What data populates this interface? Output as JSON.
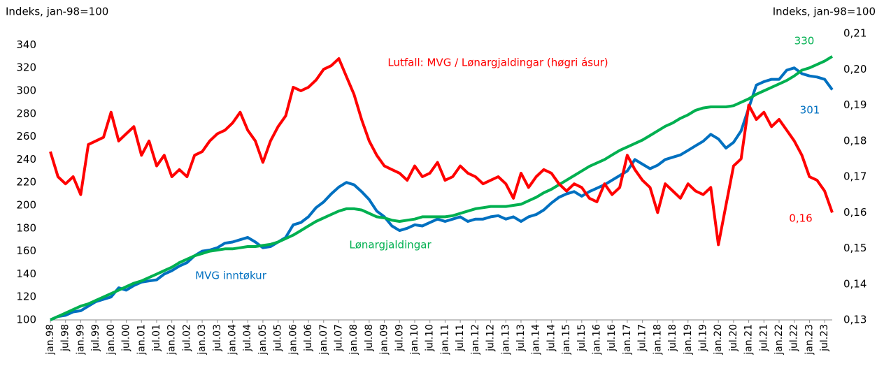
{
  "chart_data": {
    "type": "line",
    "y_label": "Indeks, jan-98=100",
    "y2_label": "Indeks, jan-98=100",
    "categories": [
      "jan.98",
      null,
      "jul.98",
      null,
      "jan.99",
      null,
      "jul.99",
      null,
      "jan.00",
      null,
      "jul.00",
      null,
      "jan.01",
      null,
      "jul.01",
      null,
      "jan.02",
      null,
      "jul.02",
      null,
      "jan.03",
      null,
      "jul.03",
      null,
      "jan.04",
      null,
      "jul.04",
      null,
      "jan.05",
      null,
      "jul.05",
      null,
      "jan.06",
      null,
      "jul.06",
      null,
      "jan.07",
      null,
      "jul.07",
      null,
      "jan.08",
      null,
      "jul.08",
      null,
      "jan.09",
      null,
      "jul.09",
      null,
      "jan.10",
      null,
      "jul.10",
      null,
      "jan.11",
      null,
      "jul.11",
      null,
      "jan.12",
      null,
      "jul.12",
      null,
      "jan.13",
      null,
      "jul.13",
      null,
      "jan.14",
      null,
      "jul.14",
      null,
      "jan.15",
      null,
      "jul.15",
      null,
      "jan.16",
      null,
      "jul.16",
      null,
      "jan.17",
      null,
      "jul.17",
      null,
      "jan.18",
      null,
      "jul.18",
      null,
      "jan.19",
      null,
      "jul.19",
      null,
      "jan.20",
      null,
      "jul.20",
      null,
      "jan.21",
      null,
      "jul.21",
      null,
      "jan.22",
      null,
      "jul.22",
      null,
      "jan.23",
      null,
      "jul.23",
      null
    ],
    "series": [
      {
        "name": "MVG inntøkur",
        "color": "#0070c0",
        "values": [
          100,
          103,
          104,
          107,
          108,
          112,
          116,
          118,
          120,
          128,
          126,
          130,
          133,
          134,
          135,
          140,
          143,
          147,
          150,
          156,
          160,
          161,
          163,
          167,
          168,
          170,
          172,
          168,
          163,
          164,
          168,
          172,
          183,
          185,
          190,
          198,
          203,
          210,
          216,
          220,
          218,
          212,
          205,
          195,
          190,
          182,
          178,
          180,
          183,
          182,
          185,
          188,
          186,
          188,
          190,
          186,
          188,
          188,
          190,
          191,
          188,
          190,
          186,
          190,
          192,
          196,
          202,
          207,
          210,
          212,
          208,
          212,
          215,
          218,
          222,
          226,
          230,
          240,
          236,
          232,
          235,
          240,
          242,
          244,
          248,
          252,
          256,
          262,
          258,
          250,
          255,
          265,
          285,
          305,
          308,
          310,
          310,
          318,
          320,
          315,
          313,
          312,
          310,
          301
        ]
      },
      {
        "name": "Lønargjaldingar",
        "color": "#00b050",
        "values": [
          100,
          103,
          106,
          109,
          112,
          114,
          117,
          120,
          123,
          126,
          129,
          132,
          134,
          137,
          140,
          143,
          146,
          150,
          153,
          156,
          158,
          160,
          161,
          162,
          162,
          163,
          164,
          164,
          165,
          166,
          168,
          171,
          174,
          178,
          182,
          186,
          189,
          192,
          195,
          197,
          197,
          196,
          193,
          190,
          189,
          187,
          186,
          187,
          188,
          190,
          190,
          190,
          190,
          191,
          193,
          195,
          197,
          198,
          199,
          199,
          199,
          200,
          201,
          204,
          207,
          211,
          214,
          218,
          222,
          226,
          230,
          234,
          237,
          240,
          244,
          248,
          251,
          254,
          257,
          261,
          265,
          269,
          272,
          276,
          279,
          283,
          285,
          286,
          286,
          286,
          287,
          290,
          293,
          297,
          300,
          303,
          306,
          309,
          313,
          318,
          320,
          323,
          326,
          330
        ]
      },
      {
        "name": "Lutfall: MVG / Lønargjaldingar (høgri ásur)",
        "color": "#ff0000",
        "axis": "y2",
        "values": [
          0.177,
          0.17,
          0.168,
          0.17,
          0.165,
          0.179,
          0.18,
          0.181,
          0.188,
          0.18,
          0.182,
          0.184,
          0.176,
          0.18,
          0.173,
          0.176,
          0.17,
          0.172,
          0.17,
          0.176,
          0.177,
          0.18,
          0.182,
          0.183,
          0.185,
          0.188,
          0.183,
          0.18,
          0.174,
          0.18,
          0.184,
          0.187,
          0.195,
          0.194,
          0.195,
          0.197,
          0.2,
          0.201,
          0.203,
          0.198,
          0.193,
          0.186,
          0.18,
          0.176,
          0.173,
          0.172,
          0.171,
          0.169,
          0.173,
          0.17,
          0.171,
          0.174,
          0.169,
          0.17,
          0.173,
          0.171,
          0.17,
          0.168,
          0.169,
          0.17,
          0.168,
          0.164,
          0.171,
          0.167,
          0.17,
          0.172,
          0.171,
          0.168,
          0.166,
          0.168,
          0.167,
          0.164,
          0.163,
          0.168,
          0.165,
          0.167,
          0.176,
          0.172,
          0.169,
          0.167,
          0.16,
          0.168,
          0.166,
          0.164,
          0.168,
          0.166,
          0.165,
          0.167,
          0.151,
          0.162,
          0.173,
          0.175,
          0.19,
          0.186,
          0.188,
          0.184,
          0.186,
          0.183,
          0.18,
          0.176,
          0.17,
          0.169,
          0.166,
          0.16
        ]
      }
    ],
    "annotations": [
      "330",
      "301",
      "0,16"
    ],
    "ylim": [
      100,
      350
    ],
    "yticks": [
      100,
      120,
      140,
      160,
      180,
      200,
      220,
      240,
      260,
      280,
      300,
      320,
      340
    ],
    "y2lim": [
      0.13,
      0.21
    ],
    "y2ticks": [
      {
        "value": 0.13,
        "label": "0,13"
      },
      {
        "value": 0.14,
        "label": "0,14"
      },
      {
        "value": 0.15,
        "label": "0,15"
      },
      {
        "value": 0.16,
        "label": "0,16"
      },
      {
        "value": 0.17,
        "label": "0,17"
      },
      {
        "value": 0.18,
        "label": "0,18"
      },
      {
        "value": 0.19,
        "label": "0,19"
      },
      {
        "value": 0.2,
        "label": "0,20"
      },
      {
        "value": 0.21,
        "label": "0,21"
      }
    ],
    "grid": false
  }
}
